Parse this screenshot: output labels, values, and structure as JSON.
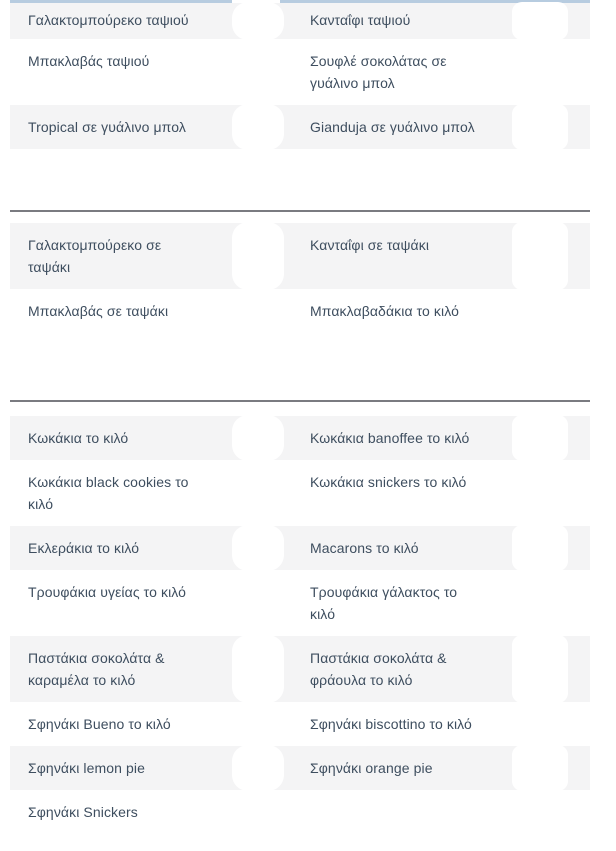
{
  "page": {
    "description": "Greek pastry shop price-list page, two-column menu tables with prices erased",
    "background": "#ffffff"
  },
  "colors": {
    "row_alt_bg": "#f4f4f5",
    "text": "#3e4e5f",
    "top_border_blue": "#b7cce0",
    "section_divider": "#7a7b80"
  },
  "menu": {
    "sections": [
      {
        "rows": [
          {
            "left": "Γαλακτομπούρεκο ταψιού",
            "right": "Κανταΐφι ταψιού"
          },
          {
            "left": "Μπακλαβάς ταψιού",
            "right": "Σουφλέ σοκολάτας σε\nγυάλινο μπολ"
          },
          {
            "left": "Tropical σε γυάλινο μπολ",
            "right": "Gianduja σε γυάλινο μπολ"
          }
        ]
      },
      {
        "rows": [
          {
            "left": "Γαλακτομπούρεκο σε\nταψάκι",
            "right": "Κανταΐφι σε ταψάκι"
          },
          {
            "left": "Μπακλαβάς σε ταψάκι",
            "right": "Μπακλαβαδάκια το κιλό"
          }
        ]
      },
      {
        "rows": [
          {
            "left": "Κωκάκια το κιλό",
            "right": "Κωκάκια banoffee το κιλό"
          },
          {
            "left": "Κωκάκια black cookies το\nκιλό",
            "right": "Κωκάκια snickers το κιλό"
          },
          {
            "left": "Εκλεράκια το κιλό",
            "right": "Macarons το κιλό"
          },
          {
            "left": "Τρουφάκια υγείας το κιλό",
            "right": "Τρουφάκια γάλακτος το\nκιλό"
          },
          {
            "left": "Παστάκια σοκολάτα &\nκαραμέλα το κιλό",
            "right": "Παστάκια σοκολάτα &\nφράουλα το κιλό"
          },
          {
            "left": "Σφηνάκι Bueno το κιλό",
            "right": "Σφηνάκι biscottino το κιλό"
          },
          {
            "left": "Σφηνάκι lemon pie",
            "right": "Σφηνάκι orange pie"
          },
          {
            "left": "Σφηνάκι Snickers",
            "right": ""
          }
        ]
      }
    ]
  }
}
